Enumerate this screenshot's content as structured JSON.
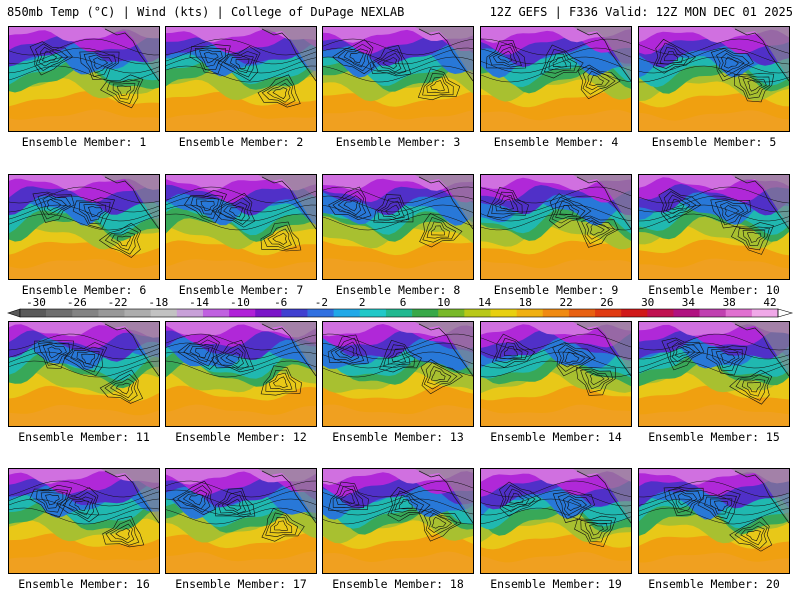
{
  "header": {
    "title_left": "850mb Temp (°C) | Wind (kts) | College of DuPage NEXLAB",
    "title_right": "12Z GEFS | F336 Valid: 12Z MON DEC 01 2025"
  },
  "members": [
    {
      "label": "Ensemble Member: 1"
    },
    {
      "label": "Ensemble Member: 2"
    },
    {
      "label": "Ensemble Member: 3"
    },
    {
      "label": "Ensemble Member: 4"
    },
    {
      "label": "Ensemble Member: 5"
    },
    {
      "label": "Ensemble Member: 6"
    },
    {
      "label": "Ensemble Member: 7"
    },
    {
      "label": "Ensemble Member: 8"
    },
    {
      "label": "Ensemble Member: 9"
    },
    {
      "label": "Ensemble Member: 10"
    },
    {
      "label": "Ensemble Member: 11"
    },
    {
      "label": "Ensemble Member: 12"
    },
    {
      "label": "Ensemble Member: 13"
    },
    {
      "label": "Ensemble Member: 14"
    },
    {
      "label": "Ensemble Member: 15"
    },
    {
      "label": "Ensemble Member: 16"
    },
    {
      "label": "Ensemble Member: 17"
    },
    {
      "label": "Ensemble Member: 18"
    },
    {
      "label": "Ensemble Member: 19"
    },
    {
      "label": "Ensemble Member: 20"
    }
  ],
  "colorbar": {
    "unit": "°C",
    "ticks": [
      "-30",
      "-26",
      "-22",
      "-18",
      "-14",
      "-10",
      "-6",
      "-2",
      "2",
      "6",
      "10",
      "14",
      "18",
      "22",
      "26",
      "30",
      "34",
      "38",
      "42"
    ],
    "colors": [
      "#5a5a5a",
      "#6e6e6e",
      "#838383",
      "#989898",
      "#adadad",
      "#c2c2c2",
      "#c8a0d8",
      "#c060e0",
      "#b020d8",
      "#7a14c8",
      "#4040d0",
      "#3070e0",
      "#20a8e8",
      "#20c8c8",
      "#20b890",
      "#38a848",
      "#78b828",
      "#b8c818",
      "#e8d010",
      "#f0b010",
      "#f08a10",
      "#e86010",
      "#e03a10",
      "#d01818",
      "#c01050",
      "#b01080",
      "#c040b0",
      "#e070d0",
      "#f0a8e8"
    ]
  }
}
